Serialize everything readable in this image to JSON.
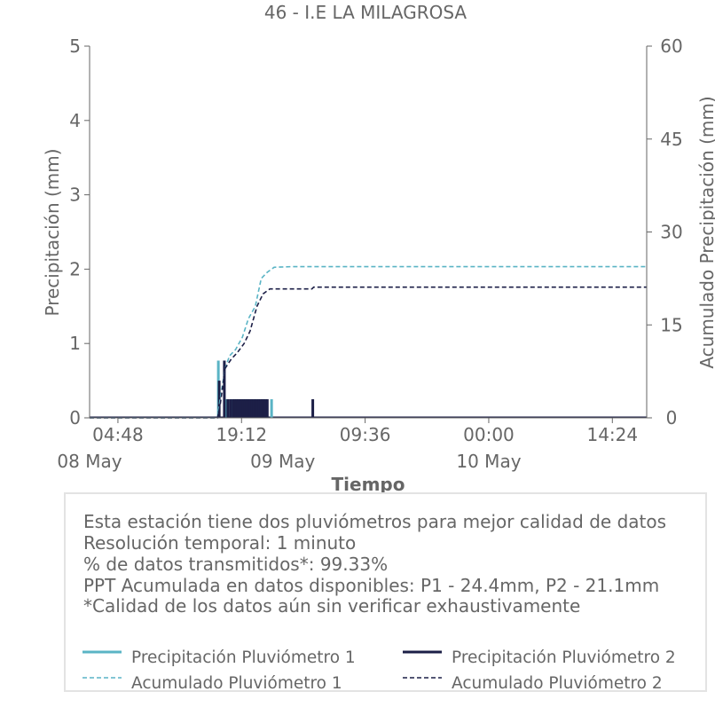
{
  "chart_data": {
    "type": "line",
    "title": "46 - I.E LA MILAGROSA",
    "xlabel": "Tiempo",
    "ylabel": "Precipitación (mm)",
    "y2label": "Acumulado Precipitación (mm)",
    "ylim": [
      0,
      5
    ],
    "y2lim": [
      0,
      60
    ],
    "yticks": [
      "0",
      "1",
      "2",
      "3",
      "4",
      "5"
    ],
    "y2ticks": [
      "0",
      "15",
      "30",
      "45",
      "60"
    ],
    "x_unit": "hours since 08 May 00:00",
    "xlim": [
      1.5,
      66.4
    ],
    "xticks": [
      {
        "x": 4.8,
        "label": "04:48"
      },
      {
        "x": 19.2,
        "label": "19:12"
      },
      {
        "x": 33.6,
        "label": "09:36"
      },
      {
        "x": 48.0,
        "label": "00:00"
      },
      {
        "x": 62.4,
        "label": "14:24"
      }
    ],
    "date_labels": [
      {
        "x": 0,
        "label": "08 May"
      },
      {
        "x": 24,
        "label": "09 May"
      },
      {
        "x": 48,
        "label": "10 May"
      }
    ],
    "grid": false,
    "colors": {
      "p1": "#5ab4c5",
      "p2": "#1c1f47",
      "axis": "#666666"
    },
    "series": [
      {
        "name": "Precipitación Pluviómetro 1",
        "axis": "left",
        "style": "bar",
        "points": [
          [
            16.5,
            0.77
          ],
          [
            17.4,
            0.25
          ],
          [
            18.0,
            0.25
          ],
          [
            18.3,
            0.25
          ],
          [
            18.7,
            0.25
          ],
          [
            19.1,
            0.25
          ],
          [
            19.5,
            0.25
          ],
          [
            19.9,
            0.25
          ],
          [
            20.4,
            0.25
          ],
          [
            20.8,
            0.25
          ],
          [
            21.2,
            0.25
          ],
          [
            21.7,
            0.25
          ],
          [
            22.7,
            0.25
          ]
        ]
      },
      {
        "name": "Precipitación Pluviómetro 2",
        "axis": "left",
        "style": "bar",
        "points": [
          [
            16.6,
            0.5
          ],
          [
            17.2,
            0.77
          ],
          [
            17.6,
            0.25
          ],
          [
            17.9,
            0.25
          ],
          [
            18.2,
            0.25
          ],
          [
            18.4,
            0.25
          ],
          [
            18.6,
            0.25
          ],
          [
            18.8,
            0.25
          ],
          [
            19.0,
            0.25
          ],
          [
            19.2,
            0.25
          ],
          [
            19.4,
            0.25
          ],
          [
            19.6,
            0.25
          ],
          [
            19.8,
            0.25
          ],
          [
            20.0,
            0.25
          ],
          [
            20.2,
            0.25
          ],
          [
            20.4,
            0.25
          ],
          [
            20.6,
            0.25
          ],
          [
            20.8,
            0.25
          ],
          [
            21.0,
            0.25
          ],
          [
            21.2,
            0.25
          ],
          [
            21.4,
            0.25
          ],
          [
            21.6,
            0.25
          ],
          [
            21.8,
            0.25
          ],
          [
            22.0,
            0.25
          ],
          [
            22.2,
            0.25
          ],
          [
            27.5,
            0.25
          ]
        ]
      },
      {
        "name": "Acumulado Pluviómetro 1",
        "axis": "right",
        "style": "dashed",
        "points": [
          [
            1.5,
            0
          ],
          [
            16.4,
            0
          ],
          [
            16.7,
            3.0
          ],
          [
            17.3,
            8.0
          ],
          [
            17.8,
            10.0
          ],
          [
            18.5,
            11.0
          ],
          [
            19.3,
            13.0
          ],
          [
            20.0,
            16.0
          ],
          [
            20.8,
            18.0
          ],
          [
            21.5,
            22.5
          ],
          [
            22.2,
            23.5
          ],
          [
            23.0,
            24.3
          ],
          [
            25.0,
            24.4
          ],
          [
            66.4,
            24.4
          ]
        ]
      },
      {
        "name": "Acumulado Pluviómetro 2",
        "axis": "right",
        "style": "dashed",
        "points": [
          [
            1.5,
            0
          ],
          [
            16.4,
            0
          ],
          [
            16.7,
            2.0
          ],
          [
            17.3,
            8.0
          ],
          [
            18.0,
            9.5
          ],
          [
            18.7,
            10.5
          ],
          [
            19.5,
            12.0
          ],
          [
            20.2,
            14.0
          ],
          [
            21.0,
            18.0
          ],
          [
            21.7,
            20.0
          ],
          [
            22.5,
            20.8
          ],
          [
            27.4,
            20.8
          ],
          [
            27.6,
            21.1
          ],
          [
            66.4,
            21.1
          ]
        ]
      }
    ]
  },
  "info": {
    "lines": [
      "Esta estación tiene dos pluviómetros para mejor calidad de datos",
      "Resolución temporal: 1 minuto",
      "% de datos transmitidos*: 99.33%",
      "PPT Acumulada en datos disponibles: P1 - 24.4mm, P2 - 21.1mm",
      "*Calidad de los datos aún sin verificar exhaustivamente"
    ]
  },
  "legend": {
    "position": "bottom",
    "items": [
      {
        "label": "Precipitación Pluviómetro 1",
        "color": "#5ab4c5",
        "style": "solid"
      },
      {
        "label": "Precipitación Pluviómetro 2",
        "color": "#1c1f47",
        "style": "solid"
      },
      {
        "label": "Acumulado Pluviómetro 1",
        "color": "#5ab4c5",
        "style": "dashed"
      },
      {
        "label": "Acumulado Pluviómetro 2",
        "color": "#1c1f47",
        "style": "dashed"
      }
    ]
  }
}
